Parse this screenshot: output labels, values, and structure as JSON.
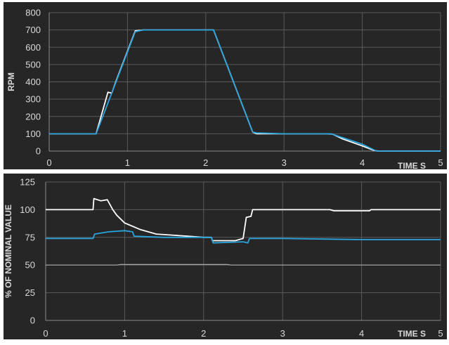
{
  "colors": {
    "panel_bg": "#262626",
    "grid": "#5a5a5a",
    "axis_line": "#8c8c8c",
    "tick_text": "#d9d9d9",
    "series_white": "#ffffff",
    "series_blue": "#2aa4dc",
    "series_gray": "#a6a6a6"
  },
  "chart_data": [
    {
      "type": "line",
      "title": "",
      "xlabel": "TIME S",
      "ylabel": "RPM",
      "xlim": [
        0,
        5
      ],
      "ylim": [
        0,
        800
      ],
      "x_ticks": [
        "0",
        "1",
        "2",
        "3",
        "4",
        "5"
      ],
      "y_ticks": [
        "0",
        "100",
        "200",
        "300",
        "400",
        "500",
        "600",
        "700",
        "800"
      ],
      "grid": true,
      "series": [
        {
          "color": "#ffffff",
          "x": [
            0,
            0.6,
            0.75,
            0.8,
            0.85,
            1.1,
            1.2,
            1.5,
            2.1,
            2.6,
            2.65,
            3.0,
            3.55,
            3.62,
            3.75,
            4.0,
            4.15,
            4.2,
            5.0
          ],
          "y": [
            100,
            100,
            340,
            335,
            400,
            695,
            700,
            700,
            700,
            110,
            100,
            100,
            100,
            98,
            70,
            30,
            4,
            0,
            0
          ]
        },
        {
          "color": "#2aa4dc",
          "x": [
            0,
            0.6,
            1.1,
            1.2,
            1.5,
            2.1,
            2.6,
            2.65,
            3.0,
            3.6,
            4.0,
            4.18,
            4.25,
            5.0
          ],
          "y": [
            100,
            100,
            690,
            700,
            700,
            700,
            110,
            105,
            100,
            100,
            40,
            0,
            0,
            0
          ]
        }
      ]
    },
    {
      "type": "line",
      "title": "",
      "xlabel": "TIME S",
      "ylabel": "% OF NOMINAL VALUE",
      "xlim": [
        0,
        5
      ],
      "ylim": [
        0,
        125
      ],
      "x_ticks": [
        "0",
        "1",
        "2",
        "3",
        "4",
        "5"
      ],
      "y_ticks": [
        "0",
        "25",
        "50",
        "75",
        "100",
        "125"
      ],
      "grid": true,
      "series": [
        {
          "color": "#ffffff",
          "x": [
            0,
            0.6,
            0.61,
            0.7,
            0.78,
            0.85,
            0.9,
            1.0,
            1.1,
            1.2,
            1.4,
            1.6,
            1.8,
            2.0,
            2.1,
            2.11,
            2.4,
            2.5,
            2.54,
            2.6,
            2.62,
            3.6,
            3.65,
            4.1,
            4.12,
            5.0
          ],
          "y": [
            100,
            100,
            110,
            108,
            109,
            100,
            95,
            88,
            85,
            82,
            78,
            77,
            76,
            75,
            75,
            72,
            72,
            74,
            93,
            94,
            100,
            100,
            99,
            99,
            100,
            100
          ]
        },
        {
          "color": "#2aa4dc",
          "x": [
            0,
            0.6,
            0.62,
            0.8,
            1.0,
            1.1,
            1.12,
            1.5,
            2.0,
            2.1,
            2.12,
            2.5,
            2.56,
            2.58,
            3.0,
            4.0,
            4.2,
            5.0
          ],
          "y": [
            74,
            74,
            78,
            80,
            81,
            80,
            76,
            75,
            75,
            75,
            70,
            71,
            70,
            74,
            74,
            73,
            73,
            73
          ]
        },
        {
          "color": "#a6a6a6",
          "x": [
            0,
            0.9,
            0.95,
            1.5,
            2.3,
            2.35,
            5.0
          ],
          "y": [
            50,
            50,
            50.5,
            50.5,
            50.5,
            50,
            50
          ]
        }
      ]
    }
  ]
}
